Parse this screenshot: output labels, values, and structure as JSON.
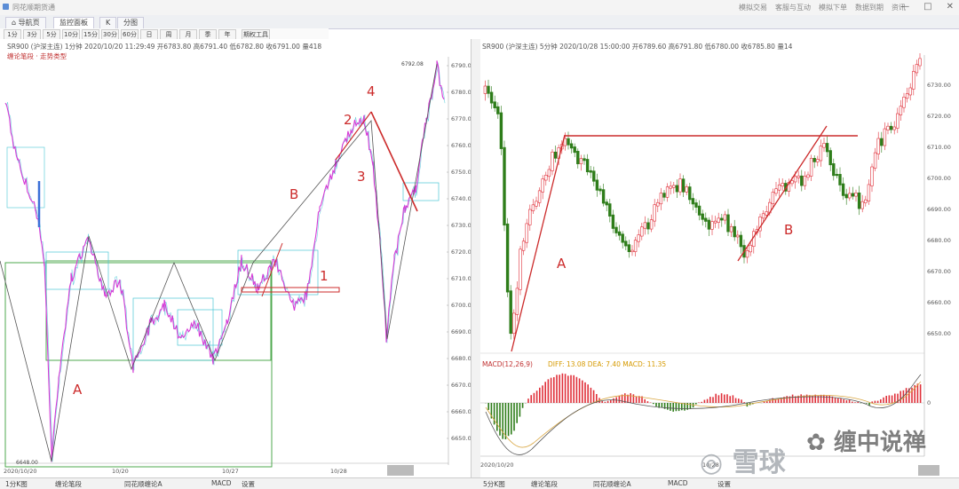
{
  "app": {
    "title": "同花顺期货通"
  },
  "window": {
    "menu": [
      "模拟交易",
      "客服与互动",
      "模拟下单",
      "数据到期",
      "资讯"
    ],
    "controls": [
      "—",
      "□",
      "✕"
    ]
  },
  "tabs": [
    "导航页",
    "监控面板",
    "K",
    "分图"
  ],
  "toolbar": {
    "buttons": [
      "1分",
      "3分",
      "5分",
      "10分",
      "15分",
      "30分",
      "60分",
      "日",
      "周",
      "月",
      "季",
      "年",
      "期权工具"
    ]
  },
  "left_chart": {
    "header": "SR900 (沪深主连) 1分钟 2020/10/20 11:29:49 开6783.80 高6791.40 低6782.80 收6791.00 量418",
    "legend": "缠论笔段 · 走势类型",
    "y_labels": [
      "6790.00",
      "6780.00",
      "6770.00",
      "6760.00",
      "6750.00",
      "6740.00",
      "6730.00",
      "6720.00",
      "6710.00",
      "6700.00",
      "6690.00",
      "6680.00",
      "6670.00",
      "6660.00",
      "6650.00"
    ],
    "x_labels": [
      "2020/10/20",
      "10/20",
      "10/27",
      "10/28"
    ],
    "annotations": [
      "A",
      "B",
      "1",
      "2",
      "3",
      "4"
    ],
    "price_marks": [
      "6792.08",
      "6648.00"
    ]
  },
  "right_chart": {
    "header": "SR900 (沪深主连) 5分钟 2020/10/28 15:00:00 开6789.60 高6791.80 低6780.00 收6785.80 量14",
    "y_labels": [
      "6730.00",
      "6720.00",
      "6710.00",
      "6700.00",
      "6690.00",
      "6680.00",
      "6670.00",
      "6660.00",
      "6650.00"
    ],
    "x_labels": [
      "2020/10/20",
      "10/28"
    ],
    "annotations": [
      "A",
      "B"
    ],
    "macd_label": "MACD(12,26,9)",
    "macd_values": "DIFF: 13.08  DEA: 7.40  MACD: 11.35",
    "macd_axis": [
      "0"
    ]
  },
  "bottom_bar": {
    "left": [
      "1分K图",
      "缠论笔段",
      "同花顺缠论A",
      "MACD",
      "设置"
    ],
    "right": [
      "5分K图",
      "缠论笔段",
      "同花顺缠论A",
      "MACD",
      "设置"
    ]
  },
  "watermark": {
    "xueqiu": "雪球",
    "author": "缠中说禅"
  },
  "colors": {
    "up": "#e0303a",
    "down": "#2e7d1a",
    "magenta": "#d63ad6",
    "cyan": "#4ac7d6",
    "zs_green": "#3ca03c",
    "annot": "#cc2b2b"
  }
}
